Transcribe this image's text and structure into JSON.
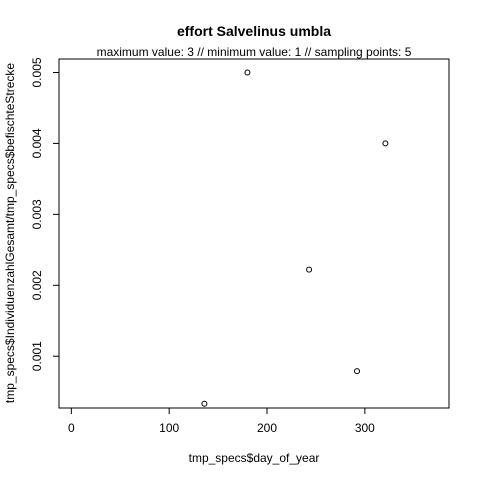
{
  "chart_data": {
    "type": "scatter",
    "title": "effort Salvelinus umbla",
    "subtitle": "maximum value: 3  //  minimum value: 1  // sampling points: 5",
    "xlabel": "tmp_specs$day_of_year",
    "ylabel": "tmp_specs$IndividuenzahlGesamt/tmp_specs$befischteStrecke",
    "x_ticks": [
      0,
      100,
      200,
      300
    ],
    "y_ticks": [
      0.001,
      0.002,
      0.003,
      0.004,
      0.005
    ],
    "y_tick_labels": [
      "0.001",
      "0.002",
      "0.003",
      "0.004",
      "0.005"
    ],
    "xlim": [
      -12.6,
      386
    ],
    "ylim": [
      0.00027,
      0.00519
    ],
    "grid": false,
    "points": [
      {
        "x": 136,
        "y": 0.00033
      },
      {
        "x": 180,
        "y": 0.005
      },
      {
        "x": 243,
        "y": 0.00222
      },
      {
        "x": 292,
        "y": 0.00079
      },
      {
        "x": 321,
        "y": 0.004
      }
    ]
  }
}
